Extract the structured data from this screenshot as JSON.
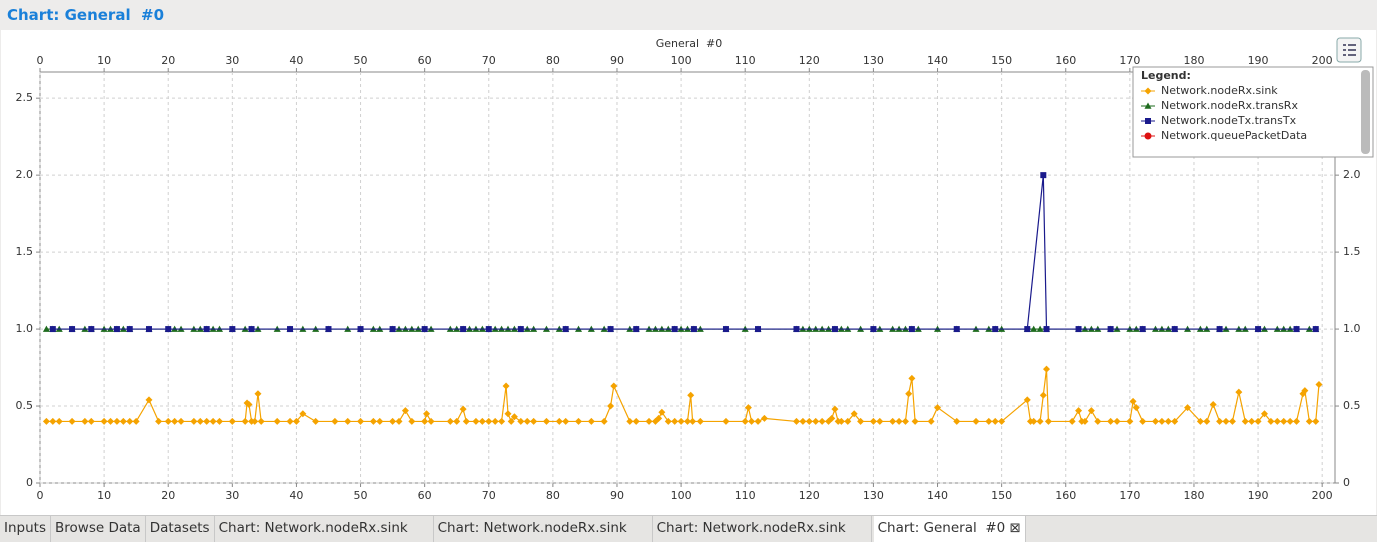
{
  "header": {
    "title": "Chart: General  #0"
  },
  "tabs": [
    "Inputs",
    "Browse Data",
    "Datasets",
    "Chart: Network.nodeRx.sink",
    "Chart: Network.nodeRx.sink",
    "Chart: Network.nodeRx.sink",
    "Chart: General  #0"
  ],
  "chart_data": {
    "type": "line",
    "title": "General  #0",
    "legend_title": "Legend:",
    "legend": "top-right",
    "grid": true,
    "xlim": [
      0,
      202
    ],
    "xticks": [
      0,
      10,
      20,
      30,
      40,
      50,
      60,
      70,
      80,
      90,
      100,
      110,
      120,
      130,
      140,
      150,
      160,
      170,
      180,
      190,
      200
    ],
    "ylim": [
      0,
      2.67
    ],
    "yticks": [
      0,
      {
        "value": 0.5,
        "label": "0.5"
      },
      {
        "value": 1,
        "label": "1.0"
      },
      {
        "value": 1.5,
        "label": "1.5"
      },
      {
        "value": 2,
        "label": "2.0"
      },
      {
        "value": 2.5,
        "label": "2.5"
      }
    ],
    "y2lim": [
      0,
      2.67
    ],
    "y2ticks": [
      0,
      {
        "value": 0.5,
        "label": "0.5"
      },
      {
        "value": 1,
        "label": "1.0"
      },
      {
        "value": 1.5,
        "label": "1.5"
      },
      {
        "value": 2,
        "label": "2.0"
      },
      {
        "value": 2.5,
        "label": "2.5"
      }
    ],
    "series": [
      {
        "name": "Network.nodeRx.sink",
        "color": "#f5a300",
        "marker": "diamond",
        "x": [
          1,
          2,
          3,
          5,
          7,
          8,
          10,
          11,
          12,
          13,
          14,
          15,
          17,
          18.5,
          20,
          21,
          22,
          24,
          25,
          26,
          27,
          28,
          30,
          32,
          32.3,
          32.6,
          33,
          33.5,
          34,
          34.5,
          37,
          39,
          40,
          41,
          43,
          46,
          48,
          50,
          52,
          53,
          55,
          56,
          57,
          58,
          60,
          60.3,
          61,
          64,
          65,
          66,
          66.5,
          68,
          69,
          70,
          71,
          72,
          72.7,
          73,
          73.5,
          74,
          75,
          76,
          77,
          79,
          81,
          82,
          84,
          86,
          88,
          89,
          89.5,
          92,
          93,
          95,
          96,
          96.5,
          97,
          98,
          99,
          100,
          101,
          101.5,
          101.8,
          103,
          107,
          110,
          110.5,
          111,
          112,
          113,
          118,
          119,
          120,
          121,
          122,
          123,
          123.5,
          124,
          124.5,
          125,
          126,
          127,
          128,
          130,
          131,
          133,
          134,
          135,
          135.5,
          136,
          136.5,
          139,
          140,
          143,
          146,
          148,
          149,
          150,
          154,
          154.5,
          155,
          156,
          156.5,
          157,
          157.3,
          161,
          162,
          162.5,
          163,
          164,
          165,
          167,
          168,
          170,
          170.5,
          171,
          172,
          174,
          175,
          176,
          177,
          179,
          181,
          182,
          183,
          184,
          185,
          186,
          187,
          188,
          189,
          190,
          191,
          192,
          193,
          194,
          195,
          196,
          197,
          197.3,
          198,
          199,
          199.5
        ],
        "values": [
          0.4,
          0.4,
          0.4,
          0.4,
          0.4,
          0.4,
          0.4,
          0.4,
          0.4,
          0.4,
          0.4,
          0.4,
          0.54,
          0.4,
          0.4,
          0.4,
          0.4,
          0.4,
          0.4,
          0.4,
          0.4,
          0.4,
          0.4,
          0.4,
          0.52,
          0.51,
          0.4,
          0.4,
          0.58,
          0.4,
          0.4,
          0.4,
          0.4,
          0.45,
          0.4,
          0.4,
          0.4,
          0.4,
          0.4,
          0.4,
          0.4,
          0.4,
          0.47,
          0.4,
          0.4,
          0.45,
          0.4,
          0.4,
          0.4,
          0.48,
          0.4,
          0.4,
          0.4,
          0.4,
          0.4,
          0.4,
          0.63,
          0.45,
          0.4,
          0.43,
          0.4,
          0.4,
          0.4,
          0.4,
          0.4,
          0.4,
          0.4,
          0.4,
          0.4,
          0.5,
          0.63,
          0.4,
          0.4,
          0.4,
          0.4,
          0.42,
          0.46,
          0.4,
          0.4,
          0.4,
          0.4,
          0.57,
          0.4,
          0.4,
          0.4,
          0.4,
          0.49,
          0.4,
          0.4,
          0.42,
          0.4,
          0.4,
          0.4,
          0.4,
          0.4,
          0.4,
          0.42,
          0.48,
          0.4,
          0.4,
          0.4,
          0.45,
          0.4,
          0.4,
          0.4,
          0.4,
          0.4,
          0.4,
          0.58,
          0.68,
          0.4,
          0.4,
          0.49,
          0.4,
          0.4,
          0.4,
          0.4,
          0.4,
          0.54,
          0.4,
          0.4,
          0.4,
          0.57,
          0.74,
          0.4,
          0.4,
          0.47,
          0.4,
          0.4,
          0.47,
          0.4,
          0.4,
          0.4,
          0.4,
          0.53,
          0.49,
          0.4,
          0.4,
          0.4,
          0.4,
          0.4,
          0.49,
          0.4,
          0.4,
          0.51,
          0.4,
          0.4,
          0.4,
          0.59,
          0.4,
          0.4,
          0.4,
          0.45,
          0.4,
          0.4,
          0.4,
          0.4,
          0.4,
          0.58,
          0.6,
          0.4,
          0.4,
          0.64
        ]
      },
      {
        "name": "Network.nodeRx.transRx",
        "color": "#1e6b1e",
        "marker": "triangle",
        "x": [
          1,
          2,
          3,
          5,
          7,
          8,
          10,
          11,
          12,
          13,
          14,
          17,
          20,
          21,
          22,
          24,
          25,
          26,
          27,
          28,
          30,
          32,
          33,
          34,
          37,
          39,
          41,
          43,
          45,
          48,
          50,
          52,
          53,
          55,
          56,
          57,
          58,
          59,
          60,
          61,
          64,
          65,
          66,
          67,
          68,
          69,
          70,
          71,
          72,
          73,
          74,
          75,
          76,
          77,
          79,
          81,
          82,
          84,
          86,
          88,
          89,
          92,
          93,
          95,
          96,
          97,
          98,
          99,
          100,
          101,
          102,
          103,
          107,
          110,
          112,
          118,
          119,
          120,
          121,
          122,
          123,
          124,
          125,
          126,
          128,
          130,
          131,
          133,
          134,
          135,
          136,
          137,
          140,
          143,
          146,
          148,
          149,
          150,
          154,
          155,
          156,
          157,
          162,
          163,
          164,
          165,
          167,
          168,
          170,
          171,
          172,
          174,
          175,
          176,
          177,
          179,
          181,
          182,
          184,
          185,
          187,
          188,
          190,
          191,
          193,
          194,
          195,
          196,
          198,
          199
        ],
        "values": [
          1,
          1,
          1,
          1,
          1,
          1,
          1,
          1,
          1,
          1,
          1,
          1,
          1,
          1,
          1,
          1,
          1,
          1,
          1,
          1,
          1,
          1,
          1,
          1,
          1,
          1,
          1,
          1,
          1,
          1,
          1,
          1,
          1,
          1,
          1,
          1,
          1,
          1,
          1,
          1,
          1,
          1,
          1,
          1,
          1,
          1,
          1,
          1,
          1,
          1,
          1,
          1,
          1,
          1,
          1,
          1,
          1,
          1,
          1,
          1,
          1,
          1,
          1,
          1,
          1,
          1,
          1,
          1,
          1,
          1,
          1,
          1,
          1,
          1,
          1,
          1,
          1,
          1,
          1,
          1,
          1,
          1,
          1,
          1,
          1,
          1,
          1,
          1,
          1,
          1,
          1,
          1,
          1,
          1,
          1,
          1,
          1,
          1,
          1,
          1,
          1,
          1,
          1,
          1,
          1,
          1,
          1,
          1,
          1,
          1,
          1,
          1,
          1,
          1,
          1,
          1,
          1,
          1,
          1,
          1,
          1,
          1,
          1,
          1,
          1,
          1,
          1,
          1,
          1,
          1
        ]
      },
      {
        "name": "Network.nodeTx.transTx",
        "color": "#1a1a8c",
        "marker": "square",
        "x": [
          2,
          5,
          8,
          12,
          14,
          17,
          20,
          26,
          30,
          33,
          39,
          45,
          50,
          55,
          60,
          66,
          70,
          75,
          82,
          89,
          93,
          99,
          102,
          107,
          112,
          118,
          124,
          130,
          136,
          143,
          149,
          154,
          156.5,
          157,
          162,
          167,
          172,
          177,
          184,
          190,
          196,
          199
        ],
        "values": [
          1,
          1,
          1,
          1,
          1,
          1,
          1,
          1,
          1,
          1,
          1,
          1,
          1,
          1,
          1,
          1,
          1,
          1,
          1,
          1,
          1,
          1,
          1,
          1,
          1,
          1,
          1,
          1,
          1,
          1,
          1,
          1,
          2,
          1,
          1,
          1,
          1,
          1,
          1,
          1,
          1,
          1
        ]
      },
      {
        "name": "Network.queuePacketData",
        "color": "#dd1111",
        "marker": "circle",
        "x": [],
        "values": []
      }
    ]
  }
}
